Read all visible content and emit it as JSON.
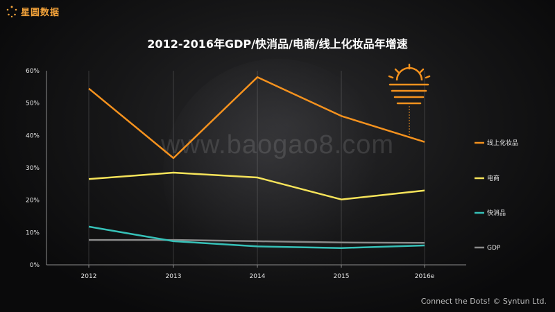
{
  "brand": {
    "name": "星圆数据",
    "icon": "sparkle-logo-icon",
    "color": "#f2a23a"
  },
  "watermark": "www.baogao8.com",
  "footer": "Connect the Dots! © Syntun Ltd.",
  "chart_data": {
    "type": "line",
    "title": "2012-2016年GDP/快消品/电商/线上化妆品年增速",
    "categories": [
      "2012",
      "2013",
      "2014",
      "2015",
      "2016e"
    ],
    "yticks": [
      "0%",
      "10%",
      "20%",
      "30%",
      "40%",
      "50%",
      "60%"
    ],
    "ylim": [
      0,
      60
    ],
    "unit": "%",
    "grid": false,
    "legend_position": "right",
    "annotation_icon": "sun-icon",
    "series": [
      {
        "name": "线上化妆品",
        "color": "#f5921e",
        "values": [
          54.5,
          33,
          58,
          46,
          38
        ]
      },
      {
        "name": "电商",
        "color": "#f7e45a",
        "values": [
          26.5,
          28.5,
          27,
          20.2,
          23
        ]
      },
      {
        "name": "快消品",
        "color": "#36c1b8",
        "values": [
          11.8,
          7.3,
          5.7,
          5.2,
          6
        ]
      },
      {
        "name": "GDP",
        "color": "#8a8a8a",
        "values": [
          7.7,
          7.7,
          7.3,
          6.9,
          6.8
        ]
      }
    ]
  }
}
